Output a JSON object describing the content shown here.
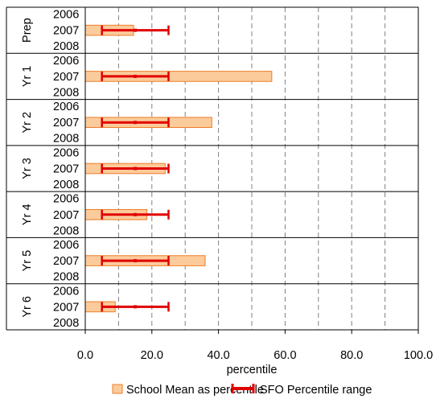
{
  "chart_data": {
    "type": "bar",
    "orientation": "horizontal",
    "title": "",
    "xlabel": "percentile",
    "ylabel": "",
    "xlim": [
      0,
      100
    ],
    "x_ticks": [
      "0.0",
      "20.0",
      "40.0",
      "60.0",
      "80.0",
      "100.0"
    ],
    "x_tick_values": [
      0,
      20,
      40,
      60,
      80,
      100
    ],
    "grid": "vertical dashed every 10",
    "legend_placement": "bottom",
    "years": [
      "2006",
      "2007",
      "2008"
    ],
    "groups": [
      "Prep",
      "Yr 1",
      "Yr 2",
      "Yr 3",
      "Yr 4",
      "Yr 5",
      "Yr 6"
    ],
    "series": [
      {
        "name": "School Mean as percentile",
        "year": "2007",
        "values": [
          14.5,
          56,
          38,
          24,
          18.5,
          36,
          9
        ]
      },
      {
        "name": "SFO Percentile range",
        "year": "2007",
        "low": [
          5,
          5,
          5,
          5,
          5,
          5,
          5
        ],
        "mid": [
          15,
          15,
          15,
          15,
          15,
          15,
          15
        ],
        "high": [
          25,
          25,
          25,
          25,
          25,
          25,
          25
        ]
      }
    ],
    "colors": {
      "bar_fill": "#FBCB9B",
      "bar_stroke": "#F07D28",
      "range": "#E00000",
      "grid": "#808080",
      "separator": "#000000"
    }
  }
}
